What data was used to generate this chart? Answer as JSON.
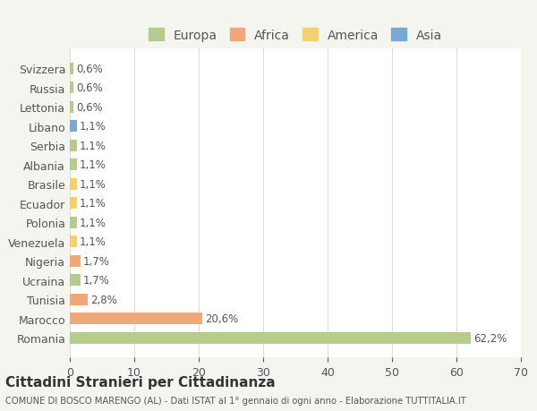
{
  "countries": [
    "Romania",
    "Marocco",
    "Tunisia",
    "Ucraina",
    "Nigeria",
    "Venezuela",
    "Polonia",
    "Ecuador",
    "Brasile",
    "Albania",
    "Serbia",
    "Libano",
    "Lettonia",
    "Russia",
    "Svizzera"
  ],
  "values": [
    62.2,
    20.6,
    2.8,
    1.7,
    1.7,
    1.1,
    1.1,
    1.1,
    1.1,
    1.1,
    1.1,
    1.1,
    0.6,
    0.6,
    0.6
  ],
  "labels": [
    "62,2%",
    "20,6%",
    "2,8%",
    "1,7%",
    "1,7%",
    "1,1%",
    "1,1%",
    "1,1%",
    "1,1%",
    "1,1%",
    "1,1%",
    "1,1%",
    "0,6%",
    "0,6%",
    "0,6%"
  ],
  "colors": [
    "#b5cc8e",
    "#f0a878",
    "#f0a878",
    "#b5cc8e",
    "#f0a878",
    "#f5d06e",
    "#b5cc8e",
    "#f5d06e",
    "#f5d06e",
    "#b5cc8e",
    "#b5cc8e",
    "#7aa8d4",
    "#b5cc8e",
    "#b5cc8e",
    "#b5cc8e"
  ],
  "legend_labels": [
    "Europa",
    "Africa",
    "America",
    "Asia"
  ],
  "legend_colors": [
    "#b5cc8e",
    "#f0a878",
    "#f5d06e",
    "#7aa8d4"
  ],
  "xlim": [
    0,
    70
  ],
  "xticks": [
    0,
    10,
    20,
    30,
    40,
    50,
    60,
    70
  ],
  "title": "Cittadini Stranieri per Cittadinanza",
  "subtitle": "COMUNE DI BOSCO MARENGO (AL) - Dati ISTAT al 1° gennaio di ogni anno - Elaborazione TUTTITALIA.IT",
  "background_color": "#f5f5f0",
  "bar_background_color": "#ffffff",
  "grid_color": "#dddddd",
  "text_color": "#555555"
}
